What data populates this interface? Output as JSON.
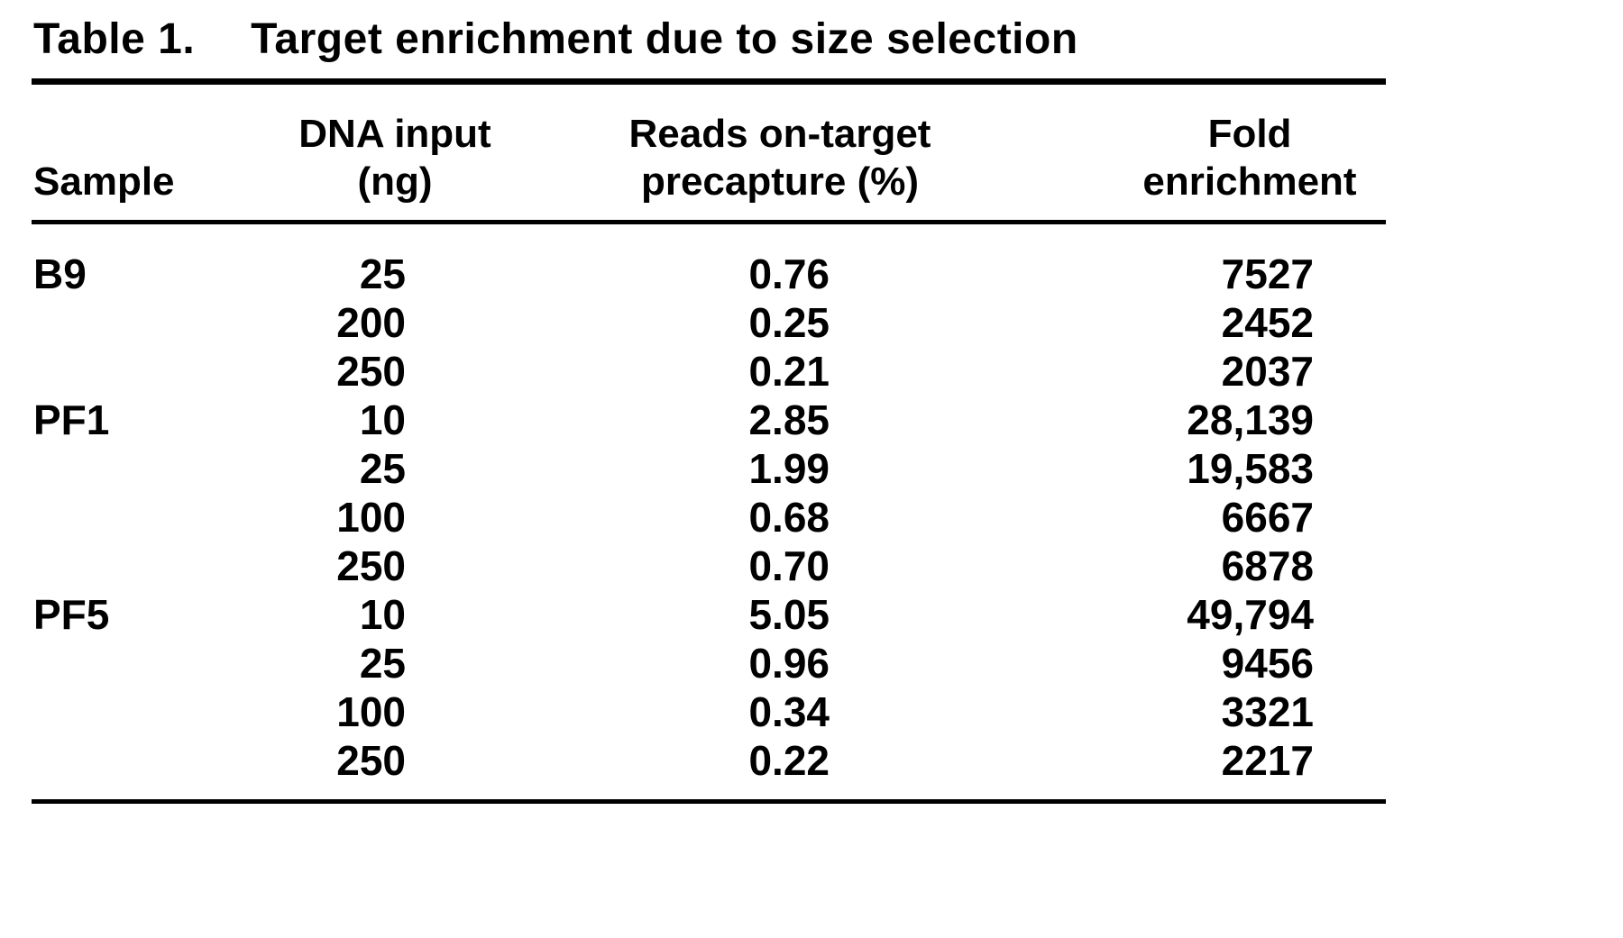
{
  "table": {
    "label": "Table 1.",
    "caption": "Target enrichment due to size selection",
    "header": {
      "sample": "Sample",
      "dna_line1": "DNA input",
      "dna_line2": "(ng)",
      "reads_line1": "Reads on-target",
      "reads_line2": "precapture (%)",
      "fold_line1": "Fold",
      "fold_line2": "enrichment"
    },
    "rows": [
      {
        "sample": "B9",
        "dna_input_ng": "25",
        "reads_on_target_pct": "0.76",
        "fold_enrichment": "7527"
      },
      {
        "sample": "",
        "dna_input_ng": "200",
        "reads_on_target_pct": "0.25",
        "fold_enrichment": "2452"
      },
      {
        "sample": "",
        "dna_input_ng": "250",
        "reads_on_target_pct": "0.21",
        "fold_enrichment": "2037"
      },
      {
        "sample": "PF1",
        "dna_input_ng": "10",
        "reads_on_target_pct": "2.85",
        "fold_enrichment": "28,139"
      },
      {
        "sample": "",
        "dna_input_ng": "25",
        "reads_on_target_pct": "1.99",
        "fold_enrichment": "19,583"
      },
      {
        "sample": "",
        "dna_input_ng": "100",
        "reads_on_target_pct": "0.68",
        "fold_enrichment": "6667"
      },
      {
        "sample": "",
        "dna_input_ng": "250",
        "reads_on_target_pct": "0.70",
        "fold_enrichment": "6878"
      },
      {
        "sample": "PF5",
        "dna_input_ng": "10",
        "reads_on_target_pct": "5.05",
        "fold_enrichment": "49,794"
      },
      {
        "sample": "",
        "dna_input_ng": "25",
        "reads_on_target_pct": "0.96",
        "fold_enrichment": "9456"
      },
      {
        "sample": "",
        "dna_input_ng": "100",
        "reads_on_target_pct": "0.34",
        "fold_enrichment": "3321"
      },
      {
        "sample": "",
        "dna_input_ng": "250",
        "reads_on_target_pct": "0.22",
        "fold_enrichment": "2217"
      }
    ]
  },
  "chart_data": {
    "type": "table",
    "title": "Table 1. Target enrichment due to size selection",
    "columns": [
      "Sample",
      "DNA input (ng)",
      "Reads on-target precapture (%)",
      "Fold enrichment"
    ],
    "rows": [
      [
        "B9",
        25,
        0.76,
        7527
      ],
      [
        "",
        200,
        0.25,
        2452
      ],
      [
        "",
        250,
        0.21,
        2037
      ],
      [
        "PF1",
        10,
        2.85,
        28139
      ],
      [
        "",
        25,
        1.99,
        19583
      ],
      [
        "",
        100,
        0.68,
        6667
      ],
      [
        "",
        250,
        0.7,
        6878
      ],
      [
        "PF5",
        10,
        5.05,
        49794
      ],
      [
        "",
        25,
        0.96,
        9456
      ],
      [
        "",
        100,
        0.34,
        3321
      ],
      [
        "",
        250,
        0.22,
        2217
      ]
    ],
    "colors": {
      "text": "#000000",
      "background": "#ffffff",
      "rules": "#000000"
    }
  }
}
